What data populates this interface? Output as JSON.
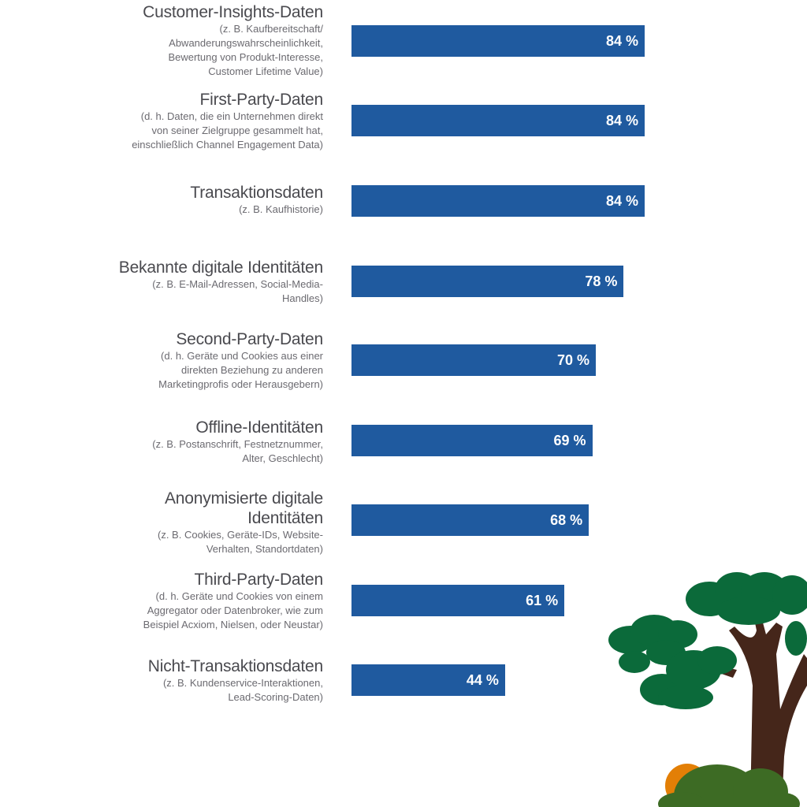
{
  "chart_data": {
    "type": "bar",
    "orientation": "horizontal",
    "xlim": [
      0,
      100
    ],
    "unit": "%",
    "categories": [
      {
        "title": "Customer-Insights-Daten",
        "note": [
          "(z. B. Kaufbereitschaft/",
          "Abwanderungswahrscheinlichkeit,",
          "Bewertung von Produkt-Interesse,",
          "Customer Lifetime Value)"
        ],
        "value": 84,
        "label": "84 %"
      },
      {
        "title": "First-Party-Daten",
        "note": [
          "(d. h. Daten, die ein Unternehmen direkt",
          "von seiner Zielgruppe gesammelt hat,",
          "einschließlich Channel Engagement Data)"
        ],
        "value": 84,
        "label": "84 %"
      },
      {
        "title": "Transaktionsdaten",
        "note": [
          "(z. B. Kaufhistorie)"
        ],
        "value": 84,
        "label": "84 %"
      },
      {
        "title": "Bekannte digitale Identitäten",
        "note": [
          "(z. B. E-Mail-Adressen, Social-Media-",
          "Handles)"
        ],
        "value": 78,
        "label": "78 %"
      },
      {
        "title": "Second-Party-Daten",
        "note": [
          "(d. h. Geräte und Cookies aus einer",
          "direkten Beziehung zu anderen",
          "Marketingprofis oder Herausgebern)"
        ],
        "value": 70,
        "label": "70 %"
      },
      {
        "title": "Offline-Identitäten",
        "note": [
          "(z. B. Postanschrift, Festnetznummer,",
          "Alter, Geschlecht)"
        ],
        "value": 69,
        "label": "69 %"
      },
      {
        "title": "Anonymisierte digitale Identitäten",
        "note": [
          "(z. B. Cookies, Geräte-IDs, Website-",
          "Verhalten, Standortdaten)"
        ],
        "value": 68,
        "label": "68 %"
      },
      {
        "title": "Third-Party-Daten",
        "note": [
          "(d. h. Geräte und Cookies von einem",
          "Aggregator oder Datenbroker, wie zum",
          "Beispiel Acxiom, Nielsen, oder Neustar)"
        ],
        "value": 61,
        "label": "61 %"
      },
      {
        "title": "Nicht-Transaktionsdaten",
        "note": [
          "(z. B. Kundenservice-Interaktionen,",
          "Lead-Scoring-Daten)"
        ],
        "value": 44,
        "label": "44 %"
      }
    ],
    "colors": {
      "bar": "#1f5a9f",
      "value_text": "#ffffff"
    }
  }
}
